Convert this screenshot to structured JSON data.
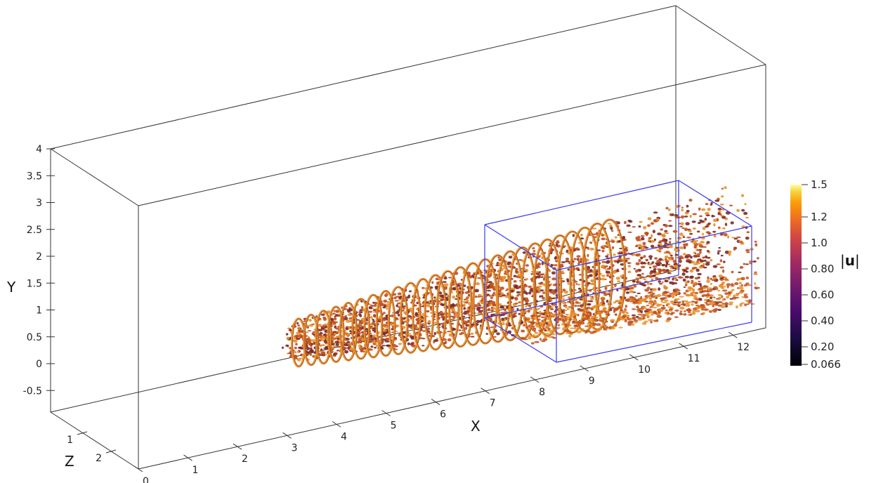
{
  "scene": {
    "axes": {
      "y_title": "Y",
      "x_title": "X",
      "z_title": "Z",
      "y_ticks": [
        "4",
        "3.5",
        "3",
        "2.5",
        "2",
        "1.5",
        "1",
        "0.5",
        "0",
        "-0.5"
      ],
      "x_ticks": [
        "0",
        "1",
        "2",
        "3",
        "4",
        "5",
        "6",
        "7",
        "8",
        "9",
        "10",
        "11",
        "12"
      ],
      "z_ticks": [
        "1",
        "2"
      ]
    },
    "colorbar": {
      "title_left": "|",
      "title_mid": "u",
      "title_right": "|",
      "labels": [
        "1.5",
        "1.2",
        "1.0",
        "0.80",
        "0.60",
        "0.40",
        "0.20",
        "0.066"
      ],
      "colors": [
        "#fcffa4",
        "#f8c932",
        "#f1731d",
        "#dc5039",
        "#c43c4e",
        "#8a226a",
        "#3b0f70",
        "#000004"
      ]
    },
    "colors": {
      "domain_box": "#333333",
      "subdomain_box": "#3333ee",
      "vortex_dark": "#7a2a2a",
      "vortex_mid": "#c0501f",
      "vortex_light": "#e8902a"
    }
  }
}
